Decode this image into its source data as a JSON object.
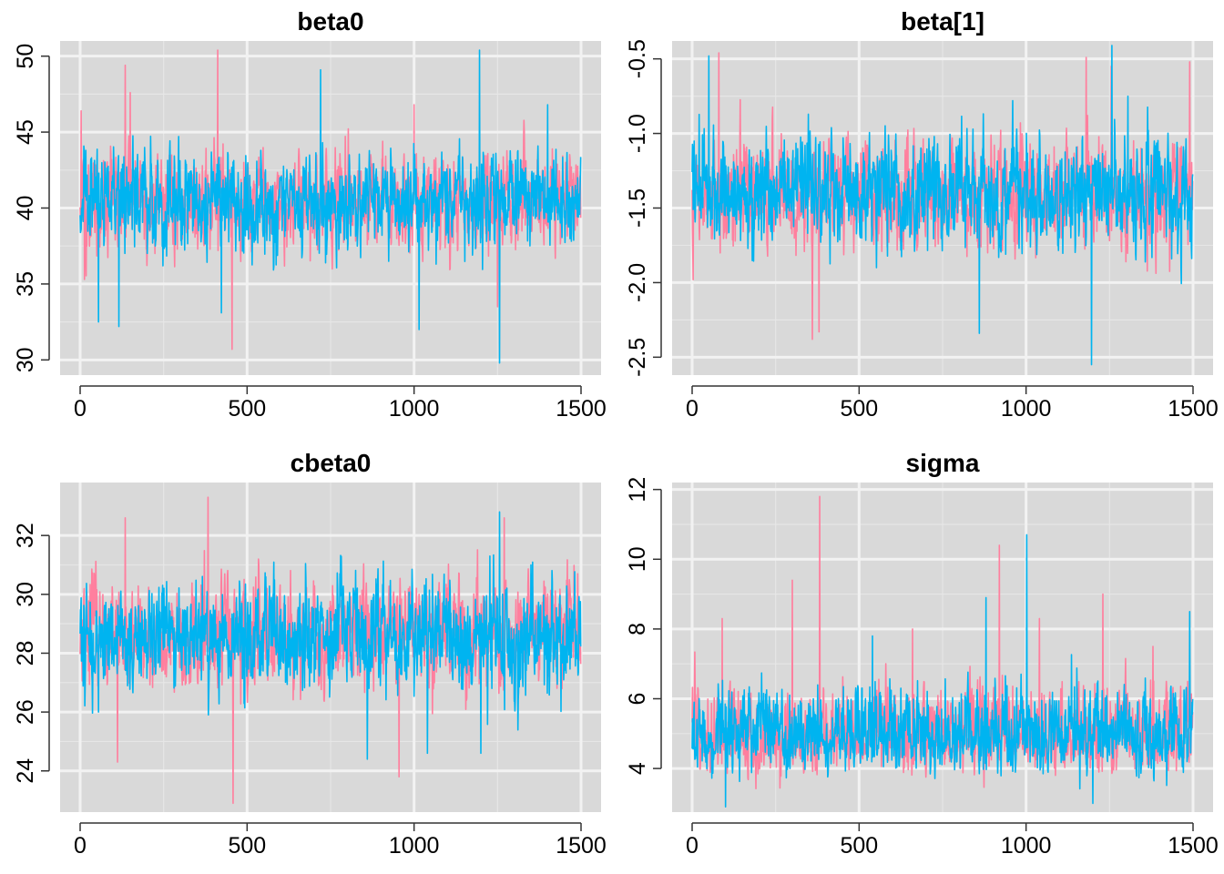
{
  "colors": {
    "chain1": "#FF7F9E",
    "chain2": "#00B4F0",
    "panel_background": "#D9D9D9",
    "grid_major": "#F2F2F2",
    "grid_minor": "#E6E6E6"
  },
  "chart_data": [
    {
      "type": "line",
      "title": "beta0",
      "xlabel": "",
      "ylabel": "",
      "xlim": [
        -60,
        1560
      ],
      "ylim": [
        29.0,
        51.0
      ],
      "x_ticks": [
        0,
        500,
        1000,
        1500
      ],
      "x_tick_labels": [
        "0",
        "500",
        "1000",
        "1500"
      ],
      "y_ticks": [
        30,
        35,
        40,
        45,
        50
      ],
      "y_tick_labels": [
        "30",
        "35",
        "40",
        "45",
        "50"
      ],
      "grid": true,
      "n_iterations": 1500,
      "series": [
        {
          "summary": {
            "center": 40.4,
            "spread": 1.5,
            "min": 30.7,
            "max": 50.4
          },
          "extremes": [
            [
              3,
              46.4
            ],
            [
              13,
              35.3
            ],
            [
              135,
              49.4
            ],
            [
              150,
              47.6
            ],
            [
              412,
              50.4
            ],
            [
              455,
              30.7
            ],
            [
              1000,
              46.8
            ],
            [
              1250,
              33.5
            ]
          ]
        },
        {
          "summary": {
            "center": 40.4,
            "spread": 1.5,
            "min": 29.8,
            "max": 50.4
          },
          "extremes": [
            [
              55,
              32.5
            ],
            [
              116,
              32.2
            ],
            [
              423,
              33.1
            ],
            [
              720,
              49.1
            ],
            [
              1015,
              32.0
            ],
            [
              1196,
              50.4
            ],
            [
              1256,
              29.8
            ],
            [
              1400,
              46.8
            ]
          ]
        }
      ]
    },
    {
      "type": "line",
      "title": "beta[1]",
      "xlabel": "",
      "ylabel": "",
      "xlim": [
        -60,
        1560
      ],
      "ylim": [
        -2.62,
        -0.38
      ],
      "x_ticks": [
        0,
        500,
        1000,
        1500
      ],
      "x_tick_labels": [
        "0",
        "500",
        "1000",
        "1500"
      ],
      "y_ticks": [
        -2.5,
        -2.0,
        -1.5,
        -1.0,
        -0.5
      ],
      "y_tick_labels": [
        "-2.5",
        "-2.0",
        "-1.5",
        "-1.0",
        "-0.5"
      ],
      "grid": true,
      "n_iterations": 1500,
      "series": [
        {
          "summary": {
            "center": -1.4,
            "spread": 0.18,
            "min": -2.38,
            "max": -0.45
          },
          "extremes": [
            [
              3,
              -1.98
            ],
            [
              80,
              -0.46
            ],
            [
              360,
              -2.38
            ],
            [
              380,
              -2.33
            ],
            [
              1180,
              -0.49
            ],
            [
              1255,
              -0.55
            ],
            [
              1490,
              -0.52
            ]
          ]
        },
        {
          "summary": {
            "center": -1.4,
            "spread": 0.18,
            "min": -2.55,
            "max": -0.41
          },
          "extremes": [
            [
              50,
              -0.48
            ],
            [
              860,
              -2.34
            ],
            [
              960,
              -0.78
            ],
            [
              1196,
              -2.55
            ],
            [
              1257,
              -0.41
            ],
            [
              1305,
              -0.75
            ]
          ]
        }
      ]
    },
    {
      "type": "line",
      "title": "cbeta0",
      "xlabel": "",
      "ylabel": "",
      "xlim": [
        -60,
        1560
      ],
      "ylim": [
        22.6,
        33.8
      ],
      "x_ticks": [
        0,
        500,
        1000,
        1500
      ],
      "x_tick_labels": [
        "0",
        "500",
        "1000",
        "1500"
      ],
      "y_ticks": [
        24,
        26,
        28,
        30,
        32
      ],
      "y_tick_labels": [
        "24",
        "26",
        "28",
        "30",
        "32"
      ],
      "grid": true,
      "n_iterations": 1500,
      "series": [
        {
          "summary": {
            "center": 28.6,
            "spread": 0.9,
            "min": 22.9,
            "max": 33.3
          },
          "extremes": [
            [
              112,
              24.3
            ],
            [
              135,
              32.6
            ],
            [
              383,
              33.3
            ],
            [
              458,
              22.9
            ],
            [
              955,
              23.8
            ],
            [
              1270,
              32.6
            ],
            [
              1490,
              30.7
            ]
          ]
        },
        {
          "summary": {
            "center": 28.6,
            "spread": 0.9,
            "min": 24.4,
            "max": 32.8
          },
          "extremes": [
            [
              55,
              26.0
            ],
            [
              860,
              24.4
            ],
            [
              1040,
              24.6
            ],
            [
              1256,
              32.8
            ],
            [
              1200,
              24.6
            ],
            [
              1350,
              31.0
            ]
          ]
        }
      ]
    },
    {
      "type": "line",
      "title": "sigma",
      "xlabel": "",
      "ylabel": "",
      "xlim": [
        -60,
        1560
      ],
      "ylim": [
        2.75,
        12.2
      ],
      "x_ticks": [
        0,
        500,
        1000,
        1500
      ],
      "x_tick_labels": [
        "0",
        "500",
        "1000",
        "1500"
      ],
      "y_ticks": [
        4,
        6,
        8,
        10,
        12
      ],
      "y_tick_labels": [
        "4",
        "6",
        "8",
        "10",
        "12"
      ],
      "grid": true,
      "n_iterations": 1500,
      "series": [
        {
          "summary": {
            "center": 4.85,
            "spread": 0.55,
            "min": 2.9,
            "max": 11.8
          },
          "extremes": [
            [
              90,
              8.3
            ],
            [
              300,
              9.4
            ],
            [
              382,
              11.8
            ],
            [
              660,
              8.0
            ],
            [
              920,
              10.4
            ],
            [
              1040,
              8.3
            ],
            [
              1230,
              9.0
            ],
            [
              1380,
              7.5
            ]
          ]
        },
        {
          "summary": {
            "center": 4.85,
            "spread": 0.55,
            "min": 2.9,
            "max": 10.7
          },
          "extremes": [
            [
              100,
              2.9
            ],
            [
              540,
              7.8
            ],
            [
              880,
              8.9
            ],
            [
              1002,
              10.7
            ],
            [
              1200,
              3.0
            ],
            [
              1490,
              8.5
            ]
          ]
        }
      ]
    }
  ]
}
